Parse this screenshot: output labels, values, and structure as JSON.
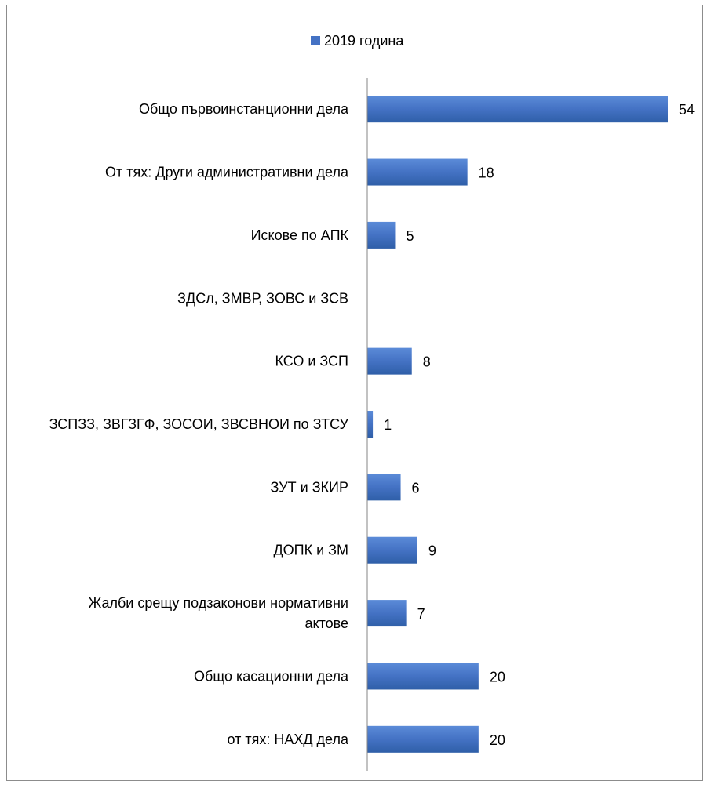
{
  "chart_data": {
    "type": "bar",
    "orientation": "horizontal",
    "legend_position": "top",
    "grid": false,
    "xlim": [
      0,
      54
    ],
    "bar_color": "#4472C4",
    "bar_gradient_light": "#5B8BD8",
    "bar_gradient_dark": "#2F5FA8",
    "series": [
      {
        "name": "2019 година",
        "categories": [
          [
            "Общо първоинстанционни дела"
          ],
          [
            "От тях: Други административни дела"
          ],
          [
            "Искове по АПК"
          ],
          [
            "ЗДСл, ЗМВР, ЗОВС и ЗСВ"
          ],
          [
            "КСО и ЗСП"
          ],
          [
            "ЗСПЗЗ, ЗВГЗГФ, ЗОСОИ, ЗВСВНОИ по ЗТСУ"
          ],
          [
            "ЗУТ и ЗКИР"
          ],
          [
            "ДОПК и ЗМ"
          ],
          [
            "Жалби срещу подзаконови нормативни",
            "актове"
          ],
          [
            "Общо касационни дела"
          ],
          [
            "от тях: НАХД дела"
          ]
        ],
        "values": [
          54,
          18,
          5,
          null,
          8,
          1,
          6,
          9,
          7,
          20,
          20
        ],
        "value_labels": [
          "54",
          "18",
          "5",
          "",
          "8",
          "1",
          "6",
          "9",
          "7",
          "20",
          "20"
        ]
      }
    ]
  }
}
